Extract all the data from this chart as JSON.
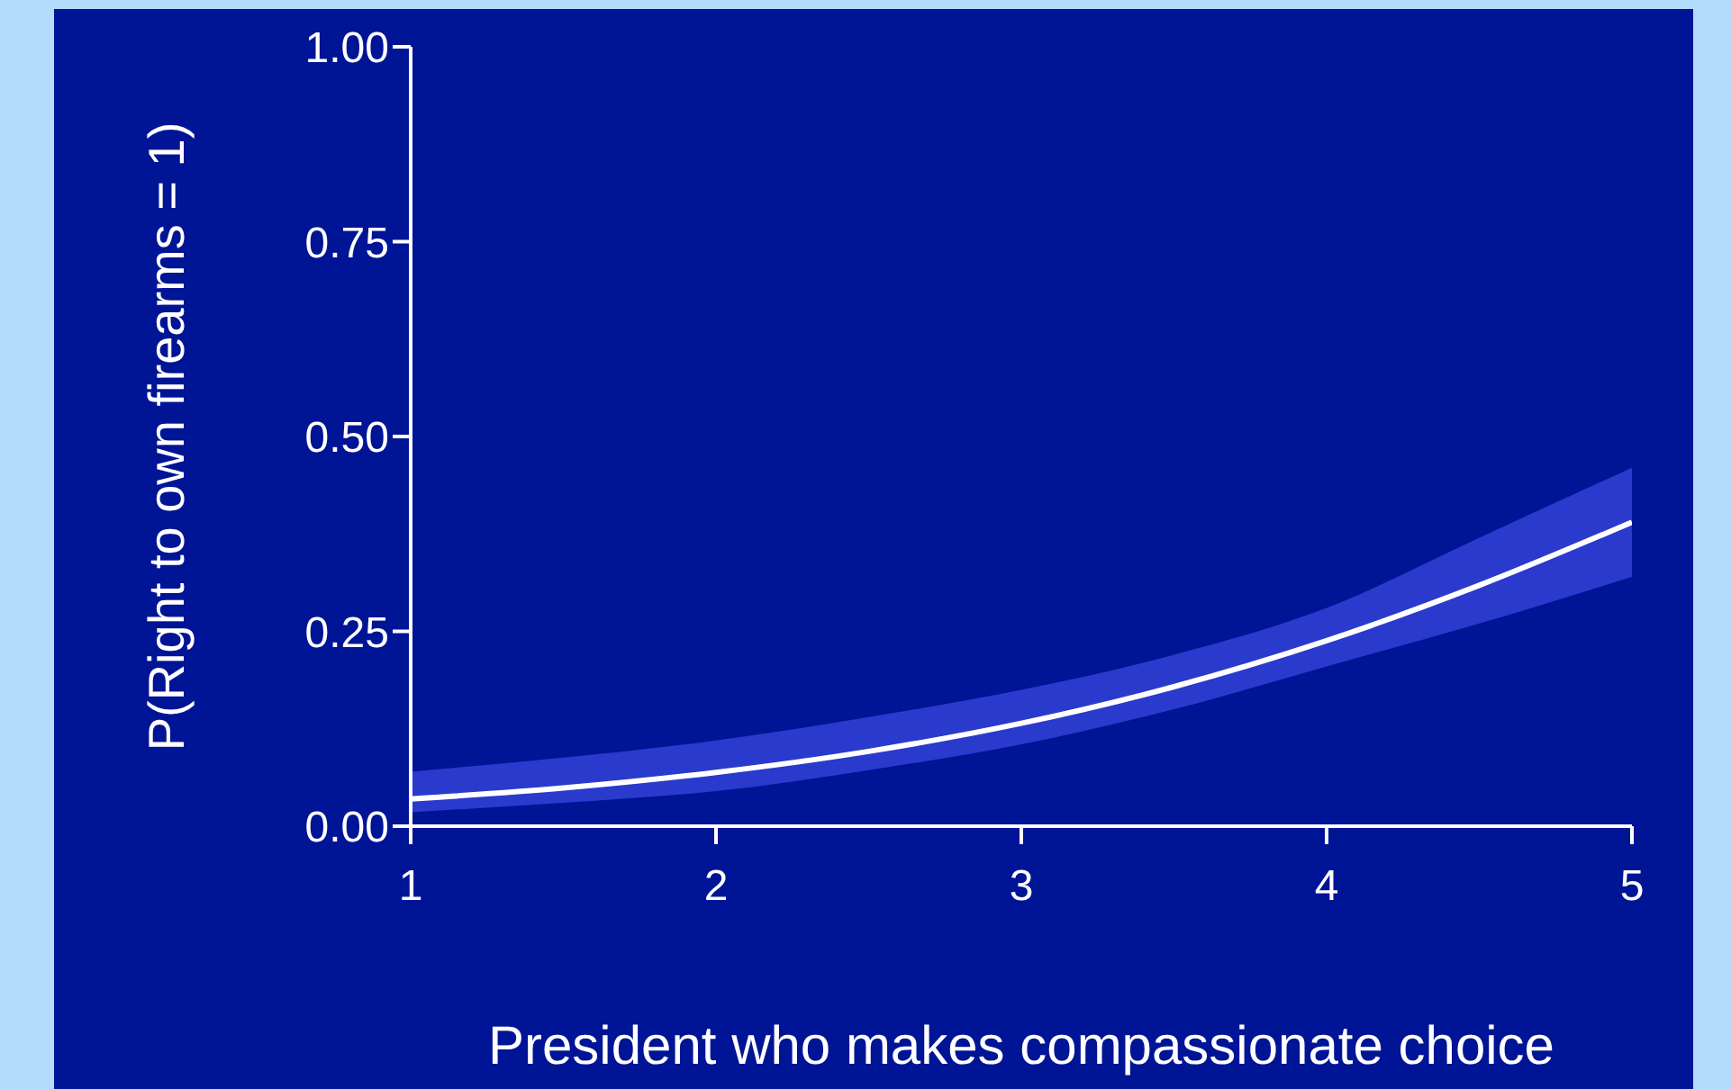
{
  "chart_data": {
    "type": "line",
    "xlabel": "President who makes compassionate choice",
    "ylabel": "P(Right to own firearms = 1)",
    "x": [
      1,
      1.5,
      2,
      2.5,
      3,
      3.5,
      4,
      4.5,
      5
    ],
    "series": [
      {
        "color": "#ffffff",
        "values": [
          0.035,
          0.049,
          0.069,
          0.096,
          0.132,
          0.179,
          0.238,
          0.309,
          0.39
        ],
        "lower": [
          0.018,
          0.03,
          0.045,
          0.072,
          0.105,
          0.15,
          0.205,
          0.26,
          0.32
        ],
        "upper": [
          0.07,
          0.088,
          0.11,
          0.14,
          0.175,
          0.22,
          0.28,
          0.37,
          0.46
        ]
      }
    ],
    "xlim": [
      1,
      5
    ],
    "xticks": [
      1,
      2,
      3,
      4,
      5
    ],
    "ylim": [
      0,
      1
    ],
    "yticks": [
      {
        "value": 0,
        "label": "0.00"
      },
      0.25,
      {
        "value": 0.5,
        "label": "0.50"
      },
      0.75,
      {
        "value": 1,
        "label": "1.00"
      }
    ],
    "grid": false,
    "legend": false,
    "marker": "none",
    "line_style": "solid"
  }
}
